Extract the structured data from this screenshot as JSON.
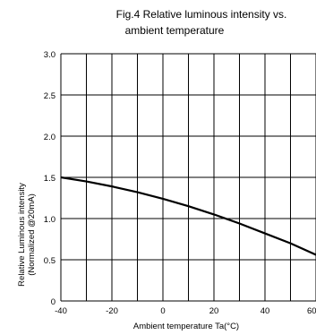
{
  "chart_data": {
    "type": "line",
    "title_line1": "Fig.4 Relative luminous intensity vs.",
    "title_line2": "ambient temperature",
    "xlabel": "Ambient temperature Ta(°C)",
    "ylabel_line1": "Relative Luminous intensity",
    "ylabel_line2": "(Normalized @20mA)",
    "xlim": [
      -40,
      60
    ],
    "ylim": [
      0,
      3.0
    ],
    "x_tick_labels": [
      "-40",
      "-20",
      "0",
      "20",
      "40",
      "60"
    ],
    "y_tick_labels": [
      "0",
      "0.5",
      "1.0",
      "1.5",
      "2.0",
      "2.5",
      "3.0"
    ],
    "grid": true,
    "series": [
      {
        "x": [
          -40,
          -30,
          -20,
          -10,
          0,
          10,
          20,
          30,
          40,
          50,
          60
        ],
        "y": [
          1.5,
          1.45,
          1.39,
          1.32,
          1.24,
          1.15,
          1.05,
          0.94,
          0.82,
          0.7,
          0.56
        ]
      }
    ],
    "line_color": "#000000",
    "grid_color": "#000000"
  }
}
